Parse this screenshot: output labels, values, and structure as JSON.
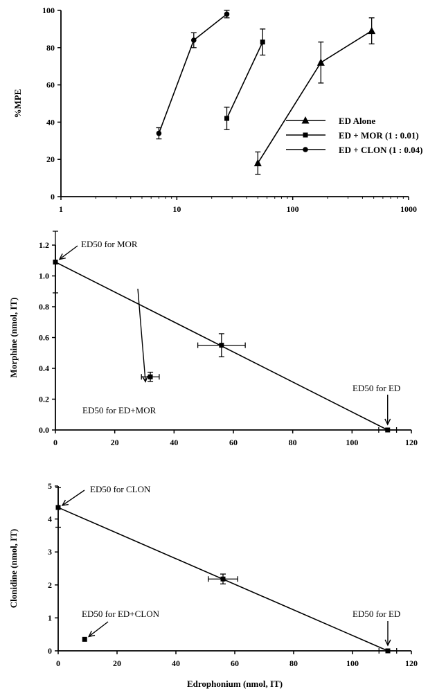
{
  "figure": {
    "panels": [
      {
        "id": "top"
      },
      {
        "id": "middle"
      },
      {
        "id": "bottom"
      }
    ]
  },
  "chart_data": [
    {
      "type": "line",
      "title": "",
      "xlabel": "",
      "ylabel": "%MPE",
      "x_scale": "log",
      "xlim": [
        1,
        1000
      ],
      "ylim": [
        0,
        100
      ],
      "x_ticks": [
        1,
        10,
        100,
        1000
      ],
      "x_tick_labels": [
        "1",
        "10",
        "100",
        "1000"
      ],
      "y_ticks": [
        0,
        20,
        40,
        60,
        80,
        100
      ],
      "y_tick_labels": [
        "0",
        "20",
        "40",
        "60",
        "80",
        "100"
      ],
      "legend_position": "right",
      "series": [
        {
          "name": "ED Alone",
          "marker": "triangle",
          "points": [
            {
              "x": 50,
              "y": 18,
              "err": 6
            },
            {
              "x": 175,
              "y": 72,
              "err": 11
            },
            {
              "x": 480,
              "y": 89,
              "err": 7
            }
          ]
        },
        {
          "name": "ED + MOR  (1 : 0.01)",
          "marker": "square",
          "points": [
            {
              "x": 27,
              "y": 42,
              "err": 6
            },
            {
              "x": 55,
              "y": 83,
              "err": 7
            }
          ]
        },
        {
          "name": "ED + CLON (1 : 0.04)",
          "marker": "circle",
          "points": [
            {
              "x": 7,
              "y": 34,
              "err": 3
            },
            {
              "x": 14,
              "y": 84,
              "err": 4
            },
            {
              "x": 27,
              "y": 98,
              "err": 2
            }
          ]
        }
      ]
    },
    {
      "type": "scatter",
      "title": "",
      "xlabel": "",
      "ylabel": "Morphine (nmol, IT)",
      "xlim": [
        0,
        120
      ],
      "ylim": [
        0,
        1.2
      ],
      "x_ticks": [
        0,
        20,
        40,
        60,
        80,
        100,
        120
      ],
      "x_tick_labels": [
        "0",
        "20",
        "40",
        "60",
        "80",
        "100",
        "120"
      ],
      "y_ticks": [
        0,
        0.2,
        0.4,
        0.6,
        0.8,
        1.0,
        1.2
      ],
      "y_tick_labels": [
        "0.0",
        "0.2",
        "0.4",
        "0.6",
        "0.8",
        "1.0",
        "1.2"
      ],
      "isobole": [
        [
          0,
          1.09
        ],
        [
          112,
          0
        ]
      ],
      "points": [
        {
          "x": 0,
          "y": 1.09,
          "yerr": 0.2,
          "xerr": 0
        },
        {
          "x": 56,
          "y": 0.55,
          "xerr": 8,
          "yerr": 0.075
        },
        {
          "x": 112,
          "y": 0,
          "xerr": 3,
          "yerr": 0
        },
        {
          "x": 32,
          "y": 0.345,
          "xerr": 3,
          "yerr": 0.03
        }
      ],
      "annotations": [
        {
          "text": "ED50 for MOR",
          "x": 0,
          "y": 1.09
        },
        {
          "text": "ED50 for ED",
          "x": 112,
          "y": 0
        },
        {
          "text": "ED50 for ED+MOR",
          "x": 32,
          "y": 0.345
        }
      ]
    },
    {
      "type": "scatter",
      "title": "",
      "xlabel": "Edrophonium (nmol, IT)",
      "ylabel": "Clonidine (nmol, IT)",
      "xlim": [
        0,
        120
      ],
      "ylim": [
        0,
        5
      ],
      "x_ticks": [
        0,
        20,
        40,
        60,
        80,
        100,
        120
      ],
      "x_tick_labels": [
        "0",
        "20",
        "40",
        "60",
        "80",
        "100",
        "120"
      ],
      "y_ticks": [
        0,
        1,
        2,
        3,
        4,
        5
      ],
      "y_tick_labels": [
        "0",
        "1",
        "2",
        "3",
        "4",
        "5"
      ],
      "isobole": [
        [
          0,
          4.35
        ],
        [
          112,
          0
        ]
      ],
      "points": [
        {
          "x": 0,
          "y": 4.35,
          "yerr": 0.6,
          "xerr": 0
        },
        {
          "x": 56,
          "y": 2.18,
          "xerr": 5,
          "yerr": 0.15
        },
        {
          "x": 112,
          "y": 0,
          "xerr": 3,
          "yerr": 0
        },
        {
          "x": 9,
          "y": 0.35,
          "xerr": 0,
          "yerr": 0
        }
      ],
      "annotations": [
        {
          "text": "ED50 for CLON",
          "x": 0,
          "y": 4.35
        },
        {
          "text": "ED50 for ED",
          "x": 112,
          "y": 0
        },
        {
          "text": "ED50 for ED+CLON",
          "x": 9,
          "y": 0.35
        }
      ]
    }
  ]
}
